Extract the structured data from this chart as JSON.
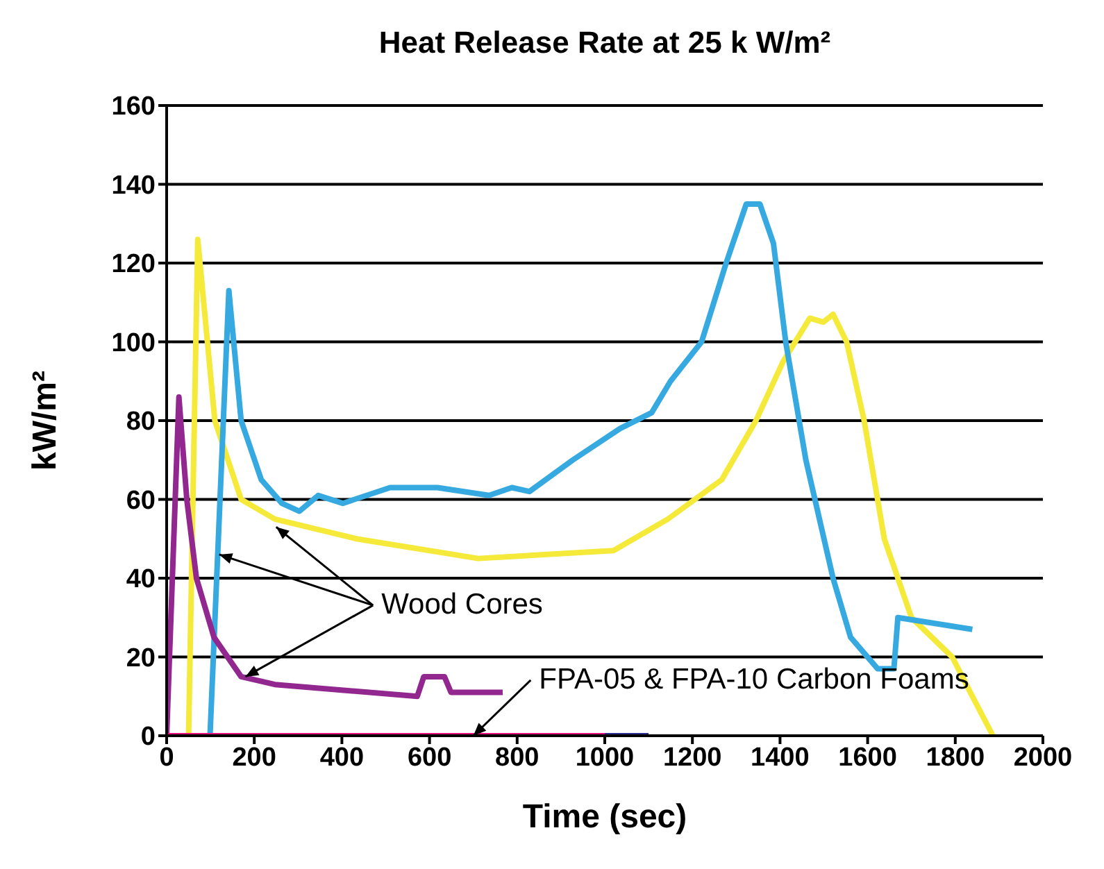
{
  "chart_data": {
    "type": "line",
    "title": "Heat Release Rate at 25 k W/m²",
    "xlabel": "Time (sec)",
    "ylabel": "kW/m²",
    "xlim": [
      0,
      2000
    ],
    "xticks": [
      0,
      200,
      400,
      600,
      800,
      1000,
      1200,
      1400,
      1600,
      1800,
      2000
    ],
    "ylim": [
      0,
      160
    ],
    "yticks": [
      0,
      20,
      40,
      60,
      80,
      100,
      120,
      140,
      160
    ],
    "grid": "y",
    "marker": "none",
    "line_style": "solid",
    "annotations": [
      {
        "text": "Wood Cores",
        "x": 250,
        "y": 53
      },
      {
        "text": "FPA-05 & FPA-10 Carbon Foams",
        "x": 700,
        "y": 0
      }
    ],
    "series": [
      {
        "color": "#f5e93a",
        "x": [
          50,
          71,
          110,
          170,
          247,
          433,
          711,
          1020,
          1144,
          1267,
          1345,
          1407,
          1468,
          1499,
          1521,
          1552,
          1592,
          1638,
          1700,
          1793,
          1839,
          1886
        ],
        "values": [
          0,
          126,
          80,
          60,
          55,
          50,
          45,
          47,
          55,
          65,
          80,
          95,
          106,
          105,
          107,
          100,
          80,
          50,
          30,
          20,
          10,
          0
        ]
      },
      {
        "color": "#35a9e0",
        "x": [
          99,
          142,
          170,
          216,
          263,
          303,
          346,
          402,
          510,
          618,
          736,
          788,
          828,
          927,
          1035,
          1107,
          1150,
          1221,
          1277,
          1323,
          1354,
          1385,
          1413,
          1459,
          1521,
          1561,
          1623,
          1660,
          1669,
          1839
        ],
        "values": [
          0,
          113,
          80,
          65,
          59,
          57,
          61,
          59,
          63,
          63,
          61,
          63,
          62,
          70,
          78,
          82,
          90,
          100,
          120,
          135,
          135,
          125,
          100,
          70,
          40,
          25,
          17,
          17,
          30,
          27
        ]
      },
      {
        "color": "#92278f",
        "x": [
          0,
          28,
          46,
          68,
          108,
          170,
          247,
          572,
          587,
          634,
          649,
          767
        ],
        "values": [
          0,
          86,
          60,
          40,
          25,
          15,
          13,
          10,
          15,
          15,
          11,
          11
        ]
      },
      {
        "color": "#e6117f",
        "x": [
          0,
          1000
        ],
        "values": [
          0,
          0
        ]
      },
      {
        "color": "#2e3192",
        "x": [
          1000,
          1100
        ],
        "values": [
          0,
          0
        ]
      }
    ]
  }
}
